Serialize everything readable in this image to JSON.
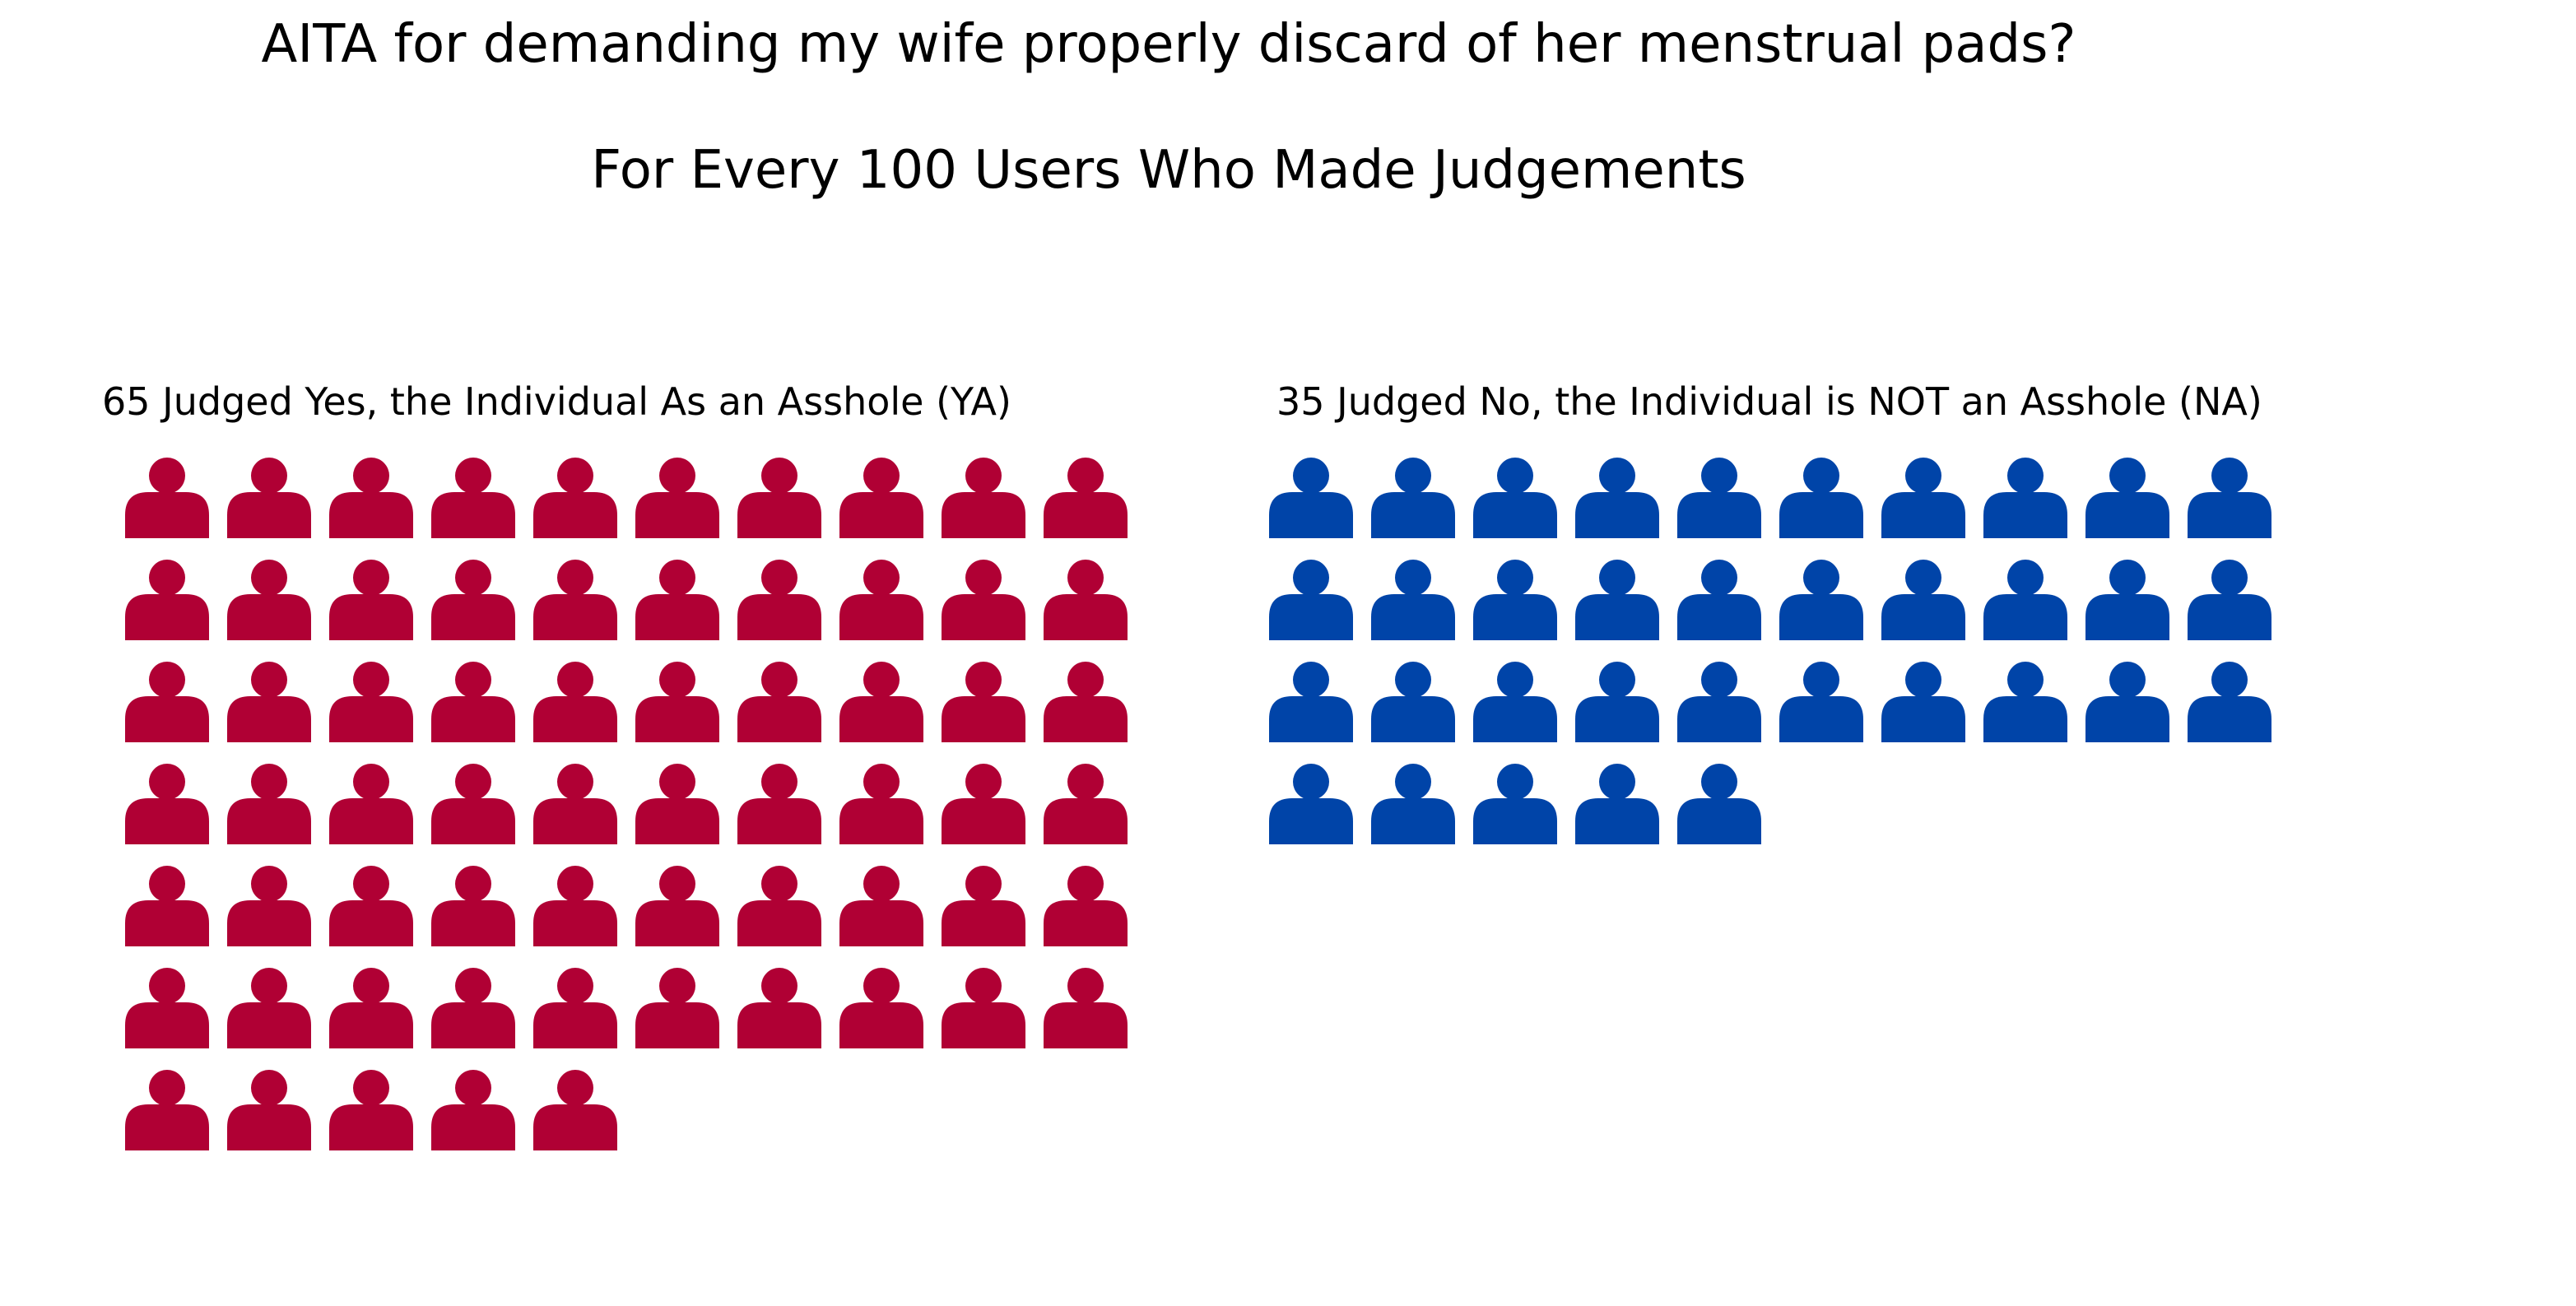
{
  "chart_data": {
    "type": "pictogram",
    "title": "AITA for demanding my wife properly discard of her menstrual pads?",
    "subtitle": "For Every 100 Users Who Made Judgements",
    "icon": "person-icon",
    "columns_per_row": 10,
    "total": 100,
    "groups": [
      {
        "key": "ya",
        "label": "65 Judged Yes, the Individual As an Asshole (YA)",
        "count": 65,
        "color": "#b00034"
      },
      {
        "key": "na",
        "label": "35 Judged No, the Individual is NOT an Asshole (NA)",
        "count": 35,
        "color": "#0044a8"
      }
    ]
  }
}
